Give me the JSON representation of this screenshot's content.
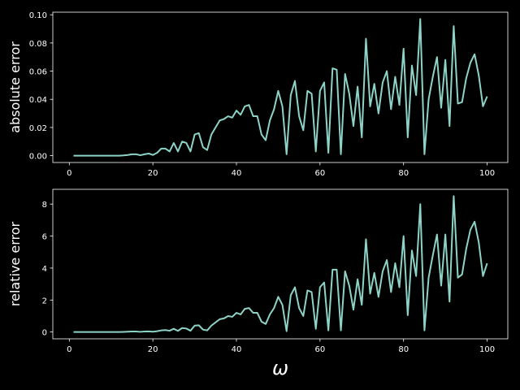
{
  "chart_data": [
    {
      "type": "line",
      "ylabel": "absolute error",
      "x": [
        1,
        2,
        3,
        4,
        5,
        6,
        7,
        8,
        9,
        10,
        11,
        12,
        13,
        14,
        15,
        16,
        17,
        18,
        19,
        20,
        21,
        22,
        23,
        24,
        25,
        26,
        27,
        28,
        29,
        30,
        31,
        32,
        33,
        34,
        35,
        36,
        37,
        38,
        39,
        40,
        41,
        42,
        43,
        44,
        45,
        46,
        47,
        48,
        49,
        50,
        51,
        52,
        53,
        54,
        55,
        56,
        57,
        58,
        59,
        60,
        61,
        62,
        63,
        64,
        65,
        66,
        67,
        68,
        69,
        70,
        71,
        72,
        73,
        74,
        75,
        76,
        77,
        78,
        79,
        80,
        81,
        82,
        83,
        84,
        85,
        86,
        87,
        88,
        89,
        90,
        91,
        92,
        93,
        94,
        95,
        96,
        97,
        98,
        99,
        100
      ],
      "series": [
        {
          "color": "#8dd3c7",
          "values": [
            0,
            0,
            0,
            0,
            0,
            0,
            0,
            0,
            0,
            0,
            0,
            0,
            0.0002,
            0.0005,
            0.001,
            0.001,
            0.0003,
            0.001,
            0.0015,
            0.0005,
            0.002,
            0.005,
            0.005,
            0.003,
            0.009,
            0.003,
            0.01,
            0.009,
            0.003,
            0.015,
            0.016,
            0.006,
            0.004,
            0.015,
            0.02,
            0.025,
            0.026,
            0.028,
            0.027,
            0.032,
            0.029,
            0.035,
            0.036,
            0.028,
            0.028,
            0.015,
            0.011,
            0.025,
            0.033,
            0.046,
            0.035,
            0.001,
            0.043,
            0.053,
            0.028,
            0.018,
            0.046,
            0.044,
            0.003,
            0.046,
            0.052,
            0.002,
            0.062,
            0.061,
            0.001,
            0.058,
            0.044,
            0.021,
            0.049,
            0.013,
            0.083,
            0.035,
            0.051,
            0.03,
            0.052,
            0.06,
            0.033,
            0.056,
            0.036,
            0.076,
            0.013,
            0.064,
            0.043,
            0.097,
            0.001,
            0.04,
            0.056,
            0.07,
            0.034,
            0.068,
            0.021,
            0.092,
            0.037,
            0.038,
            0.055,
            0.066,
            0.072,
            0.057,
            0.035,
            0.042
          ]
        }
      ],
      "xlim": [
        -3.95,
        104.95
      ],
      "xticks": [
        0,
        20,
        40,
        60,
        80,
        100
      ],
      "ylim": [
        -0.00485,
        0.10185
      ],
      "yticks": [
        {
          "value": 0,
          "label": "0.00"
        },
        {
          "value": 0.02,
          "label": "0.02"
        },
        {
          "value": 0.04,
          "label": "0.04"
        },
        {
          "value": 0.06,
          "label": "0.06"
        },
        {
          "value": 0.08,
          "label": "0.08"
        },
        {
          "value": 0.1,
          "label": "0.10"
        }
      ]
    },
    {
      "type": "line",
      "ylabel": "relative error",
      "xlabel": "ω",
      "x": [
        1,
        2,
        3,
        4,
        5,
        6,
        7,
        8,
        9,
        10,
        11,
        12,
        13,
        14,
        15,
        16,
        17,
        18,
        19,
        20,
        21,
        22,
        23,
        24,
        25,
        26,
        27,
        28,
        29,
        30,
        31,
        32,
        33,
        34,
        35,
        36,
        37,
        38,
        39,
        40,
        41,
        42,
        43,
        44,
        45,
        46,
        47,
        48,
        49,
        50,
        51,
        52,
        53,
        54,
        55,
        56,
        57,
        58,
        59,
        60,
        61,
        62,
        63,
        64,
        65,
        66,
        67,
        68,
        69,
        70,
        71,
        72,
        73,
        74,
        75,
        76,
        77,
        78,
        79,
        80,
        81,
        82,
        83,
        84,
        85,
        86,
        87,
        88,
        89,
        90,
        91,
        92,
        93,
        94,
        95,
        96,
        97,
        98,
        99,
        100
      ],
      "series": [
        {
          "color": "#8dd3c7",
          "values": [
            0,
            0,
            0,
            0,
            0,
            0,
            0,
            0,
            0,
            0,
            0,
            0,
            0.01,
            0.02,
            0.03,
            0.03,
            0.01,
            0.03,
            0.04,
            0.02,
            0.05,
            0.1,
            0.12,
            0.08,
            0.2,
            0.07,
            0.25,
            0.22,
            0.08,
            0.4,
            0.42,
            0.15,
            0.1,
            0.4,
            0.6,
            0.8,
            0.85,
            1.0,
            0.95,
            1.2,
            1.1,
            1.45,
            1.5,
            1.2,
            1.2,
            0.65,
            0.5,
            1.1,
            1.5,
            2.2,
            1.7,
            0.05,
            2.3,
            2.8,
            1.5,
            1.0,
            2.6,
            2.5,
            0.2,
            2.8,
            3.1,
            0.1,
            3.9,
            3.9,
            0.1,
            3.8,
            2.9,
            1.4,
            3.3,
            1.7,
            5.8,
            2.4,
            3.7,
            2.2,
            3.8,
            4.5,
            2.5,
            4.3,
            2.8,
            6.0,
            1.05,
            5.1,
            3.5,
            8.0,
            0.1,
            3.4,
            4.8,
            6.1,
            2.9,
            6.1,
            1.9,
            8.5,
            3.4,
            3.6,
            5.2,
            6.4,
            6.9,
            5.6,
            3.5,
            4.3
          ]
        }
      ],
      "xlim": [
        -3.95,
        104.95
      ],
      "xticks": [
        0,
        20,
        40,
        60,
        80,
        100
      ],
      "ylim": [
        -0.425,
        8.925
      ],
      "yticks": [
        0,
        2,
        4,
        6,
        8
      ]
    }
  ]
}
